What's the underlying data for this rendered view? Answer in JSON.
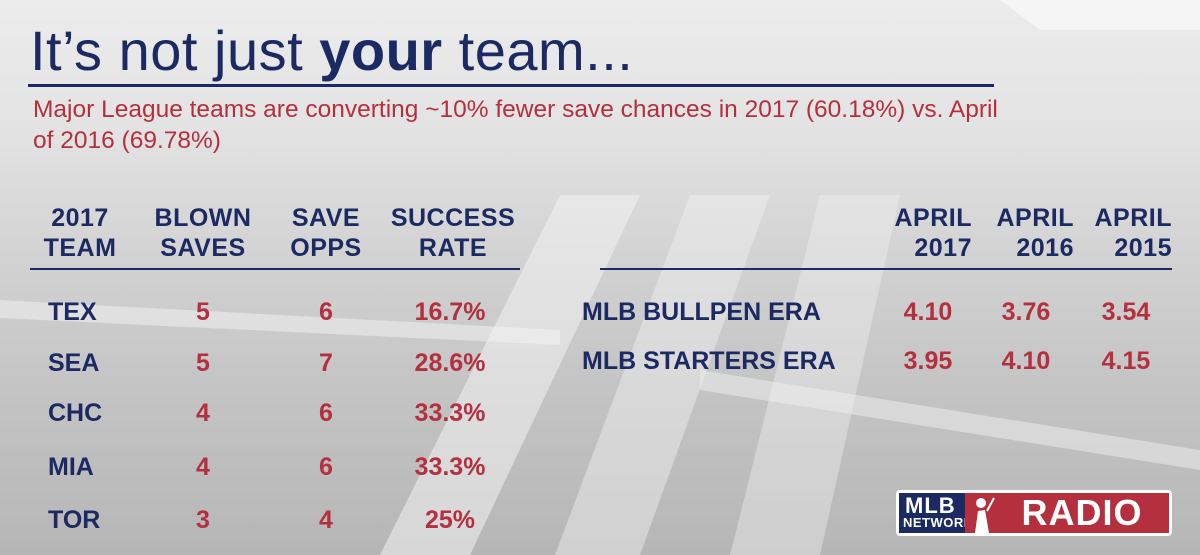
{
  "title": {
    "pre": "It’s not just ",
    "bold": "your",
    "post": " team..."
  },
  "subtitle": "Major League teams are converting ~10% fewer save chances in 2017 (60.18%) vs. April of 2016 (69.78%)",
  "left_table": {
    "headers": [
      [
        "2017",
        "TEAM"
      ],
      [
        "BLOWN",
        "SAVES"
      ],
      [
        "SAVE",
        "OPPS"
      ],
      [
        "SUCCESS",
        "RATE"
      ]
    ],
    "rows": [
      {
        "team": "TEX",
        "blown": "5",
        "opps": "6",
        "rate": "16.7%"
      },
      {
        "team": "SEA",
        "blown": "5",
        "opps": "7",
        "rate": "28.6%"
      },
      {
        "team": "CHC",
        "blown": "4",
        "opps": "6",
        "rate": "33.3%"
      },
      {
        "team": "MIA",
        "blown": "4",
        "opps": "6",
        "rate": "33.3%"
      },
      {
        "team": "TOR",
        "blown": "3",
        "opps": "4",
        "rate": "25%"
      }
    ]
  },
  "right_table": {
    "headers": [
      [
        "APRIL",
        "2017"
      ],
      [
        "APRIL",
        "2016"
      ],
      [
        "APRIL",
        "2015"
      ]
    ],
    "rows": [
      {
        "label": "MLB BULLPEN ERA",
        "values": [
          "4.10",
          "3.76",
          "3.54"
        ]
      },
      {
        "label": "MLB STARTERS ERA",
        "values": [
          "3.95",
          "4.10",
          "4.15"
        ]
      }
    ]
  },
  "logo": {
    "mlb": "MLB",
    "network": "NETWORK",
    "radio": "RADIO"
  },
  "colors": {
    "navy": "#1b2a63",
    "red": "#b5303f",
    "background": "#d9d9d9"
  }
}
